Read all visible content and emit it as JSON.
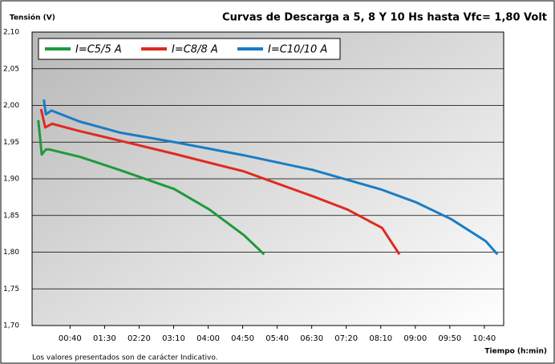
{
  "chart_data": {
    "type": "line",
    "title": "Curvas de Descarga a 5, 8 Y 10 Hs hasta Vfc= 1,80 Volt",
    "y_label": "Tensión (V)",
    "x_label": "Tiempo (h:min)",
    "note": "Los valores presentados son de carácter Indicativo.",
    "xlim": [
      -15,
      668
    ],
    "xticks": [
      {
        "value": 40,
        "label": "00:40"
      },
      {
        "value": 90,
        "label": "01:30"
      },
      {
        "value": 140,
        "label": "02:20"
      },
      {
        "value": 190,
        "label": "03:10"
      },
      {
        "value": 240,
        "label": "04:00"
      },
      {
        "value": 290,
        "label": "04:50"
      },
      {
        "value": 340,
        "label": "05:40"
      },
      {
        "value": 390,
        "label": "06:30"
      },
      {
        "value": 440,
        "label": "07:20"
      },
      {
        "value": 490,
        "label": "08:10"
      },
      {
        "value": 540,
        "label": "09:00"
      },
      {
        "value": 590,
        "label": "09:50"
      },
      {
        "value": 640,
        "label": "10:40"
      }
    ],
    "ylim": [
      1.7,
      2.1
    ],
    "yticks": [
      {
        "value": 1.7,
        "label": "1,70"
      },
      {
        "value": 1.75,
        "label": "1,75"
      },
      {
        "value": 1.8,
        "label": "1,80"
      },
      {
        "value": 1.85,
        "label": "1,85"
      },
      {
        "value": 1.9,
        "label": "1,90"
      },
      {
        "value": 1.95,
        "label": "1,95"
      },
      {
        "value": 2.0,
        "label": "2,00"
      },
      {
        "value": 2.05,
        "label": "2,05"
      },
      {
        "value": 2.1,
        "label": "2,10"
      }
    ],
    "grid": true,
    "legend": "top-left",
    "series": [
      {
        "name": "I=C5/5 A",
        "color": "#1e9a3c",
        "x": [
          -6,
          -1,
          5,
          10,
          54,
          112,
          191,
          242,
          292,
          321
        ],
        "values": [
          1.98,
          1.933,
          1.94,
          1.94,
          1.93,
          1.912,
          1.886,
          1.858,
          1.823,
          1.797
        ]
      },
      {
        "name": "I=C8/8 A",
        "color": "#e02a20",
        "x": [
          -2,
          4,
          14,
          54,
          112,
          191,
          292,
          342,
          392,
          442,
          492,
          517
        ],
        "values": [
          1.995,
          1.97,
          1.975,
          1.965,
          1.952,
          1.934,
          1.91,
          1.893,
          1.876,
          1.858,
          1.833,
          1.797
        ]
      },
      {
        "name": "I=C10/10 A",
        "color": "#1a7cc4",
        "x": [
          2,
          5,
          13,
          54,
          112,
          191,
          292,
          392,
          492,
          541,
          592,
          642,
          659
        ],
        "values": [
          2.008,
          1.988,
          1.993,
          1.978,
          1.963,
          1.95,
          1.932,
          1.912,
          1.885,
          1.868,
          1.845,
          1.815,
          1.797
        ]
      }
    ]
  }
}
